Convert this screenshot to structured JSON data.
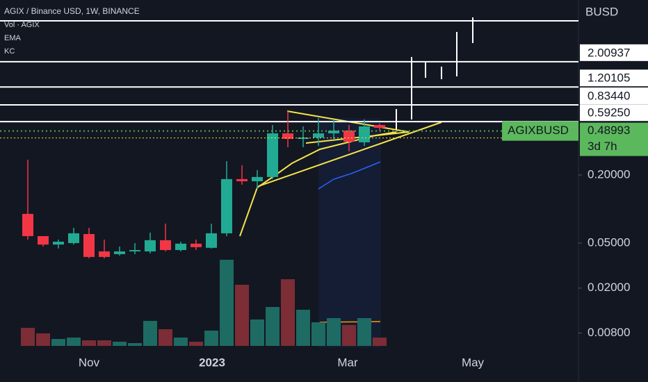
{
  "header": {
    "symbol": "AGIX / Binance USD, 1W, BINANCE",
    "indicators": [
      "Vol · AGIX",
      "EMA",
      "KC"
    ]
  },
  "chart_data": {
    "type": "candlestick",
    "currency": "BUSD",
    "log_scale": true,
    "ylim": [
      0.0052,
      7.06
    ],
    "yticks": [
      {
        "value": 0.2,
        "label": "0.20000"
      },
      {
        "value": 0.05,
        "label": "0.05000"
      },
      {
        "value": 0.02,
        "label": "0.02000"
      },
      {
        "value": 0.008,
        "label": "0.00800"
      }
    ],
    "levels": [
      {
        "value": 2.00937,
        "label": "2.00937"
      },
      {
        "value": 1.20105,
        "label": "1.20105"
      },
      {
        "value": 0.8344,
        "label": "0.83440"
      },
      {
        "value": 0.5925,
        "label": "0.59250"
      }
    ],
    "last_price": {
      "symbol": "AGIXBUSD",
      "value": 0.48993,
      "label": "0.48993",
      "countdown": "3d 7h"
    },
    "x_labels": [
      "Nov",
      "2023",
      "Mar",
      "May"
    ],
    "open": [
      0.0906,
      0.0576,
      0.0485,
      0.05,
      0.0601,
      0.0422,
      0.0399,
      0.0422,
      0.0422,
      0.053,
      0.0434,
      0.0494,
      0.0454,
      0.061,
      0.184,
      0.176,
      0.192,
      0.467,
      0.417,
      0.429,
      0.467,
      0.494,
      0.389,
      0.553
    ],
    "high": [
      0.273,
      0.0537,
      0.0537,
      0.0682,
      0.0682,
      0.0537,
      0.0466,
      0.05,
      0.0618,
      0.0743,
      0.0514,
      0.0537,
      0.0743,
      0.265,
      0.244,
      0.221,
      0.553,
      0.734,
      0.538,
      0.638,
      0.62,
      0.553,
      0.62,
      0.57
    ],
    "low": [
      0.0537,
      0.0466,
      0.0448,
      0.0485,
      0.0366,
      0.0366,
      0.0388,
      0.0399,
      0.0405,
      0.0422,
      0.0422,
      0.0434,
      0.0448,
      0.0576,
      0.164,
      0.151,
      0.184,
      0.352,
      0.352,
      0.362,
      0.417,
      0.324,
      0.362,
      0.494
    ],
    "close": [
      0.0576,
      0.0485,
      0.0514,
      0.061,
      0.0377,
      0.0377,
      0.0422,
      0.0434,
      0.053,
      0.0434,
      0.0494,
      0.046,
      0.061,
      0.184,
      0.176,
      0.192,
      0.467,
      0.417,
      0.429,
      0.467,
      0.494,
      0.394,
      0.538,
      0.523
    ],
    "volume": [
      26,
      18,
      10,
      12,
      8,
      8,
      6,
      4,
      36,
      24,
      12,
      6,
      22,
      124,
      88,
      38,
      56,
      96,
      52,
      34,
      40,
      30,
      40,
      12
    ],
    "volume_ylim": [
      0,
      130
    ],
    "up_color": "#22ab94",
    "down_color": "#f23645",
    "up_volume_color": "#1d6b63",
    "down_volume_color": "#7d2d35"
  }
}
